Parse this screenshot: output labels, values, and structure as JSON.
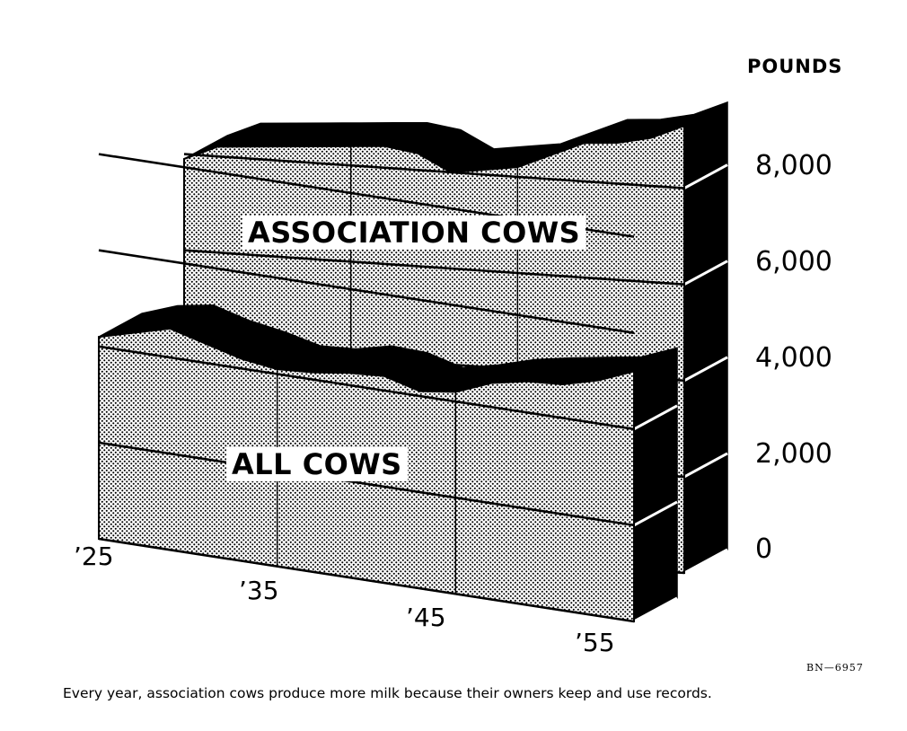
{
  "chart_data": {
    "type": "area",
    "title": "",
    "ylabel": "POUNDS",
    "xlabel": "",
    "ylim": [
      0,
      10000
    ],
    "yticks": [
      0,
      2000,
      4000,
      6000,
      8000
    ],
    "ytick_labels": [
      "0",
      "2,000",
      "4,000",
      "6,000",
      "8,000"
    ],
    "xticks": [
      1925,
      1935,
      1945,
      1955
    ],
    "xtick_labels": [
      "’25",
      "’35",
      "’45",
      "’55"
    ],
    "grid": true,
    "style": "3D stippled ribbon",
    "series": [
      {
        "name": "ASSOCIATION COWS",
        "x": [
          1925,
          1927,
          1929,
          1931,
          1933,
          1935,
          1937,
          1939,
          1941,
          1943,
          1945,
          1947,
          1949,
          1951,
          1953,
          1955
        ],
        "values": [
          7900,
          8200,
          8250,
          8300,
          8350,
          8400,
          8450,
          8350,
          8000,
          8100,
          8200,
          8500,
          8800,
          8850,
          9000,
          9300
        ]
      },
      {
        "name": "ALL COWS",
        "x": [
          1925,
          1927,
          1929,
          1931,
          1933,
          1935,
          1937,
          1939,
          1941,
          1943,
          1945,
          1947,
          1949,
          1951,
          1953,
          1955
        ],
        "values": [
          4200,
          4400,
          4600,
          4400,
          4200,
          4100,
          4150,
          4250,
          4300,
          4100,
          4200,
          4500,
          4650,
          4700,
          4900,
          5200
        ]
      }
    ]
  },
  "figure_code": "BN—6957",
  "caption": "Every year, association cows produce more milk because their owners keep and use records."
}
